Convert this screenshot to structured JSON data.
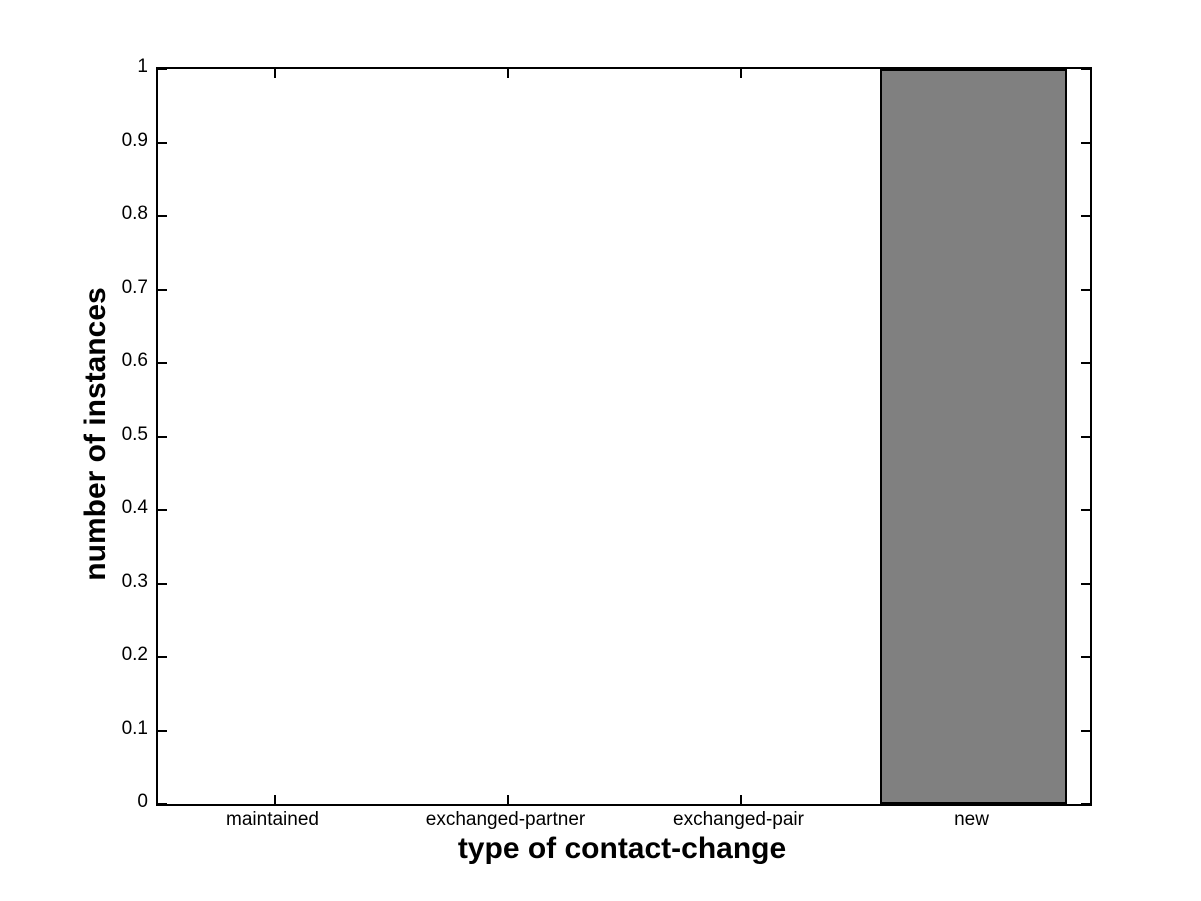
{
  "figure": {
    "background_color": "#ffffff",
    "axis_color": "#000000",
    "text_color": "#000000"
  },
  "chart_data": {
    "type": "bar",
    "title": "",
    "xlabel": "type of contact-change",
    "ylabel": "number of instances",
    "categories": [
      "maintained",
      "exchanged-partner",
      "exchanged-pair",
      "new"
    ],
    "values": [
      0,
      0,
      0,
      1
    ],
    "series": [
      {
        "name": "instances",
        "values": [
          0,
          0,
          0,
          1
        ]
      }
    ],
    "ylim": [
      0,
      1
    ],
    "xlim": [
      0.5,
      4.5
    ],
    "yticks": [
      0,
      0.1,
      0.2,
      0.3,
      0.4,
      0.5,
      0.6,
      0.7,
      0.8,
      0.9,
      1
    ],
    "ytick_labels": [
      "0",
      "0.1",
      "0.2",
      "0.3",
      "0.4",
      "0.5",
      "0.6",
      "0.7",
      "0.8",
      "0.9",
      "1"
    ],
    "bar_width_fraction": 0.8,
    "bar_color": "#808080",
    "bar_edge_color": "#000000",
    "grid": false,
    "legend": null,
    "box": true,
    "ticks_direction": "in"
  }
}
